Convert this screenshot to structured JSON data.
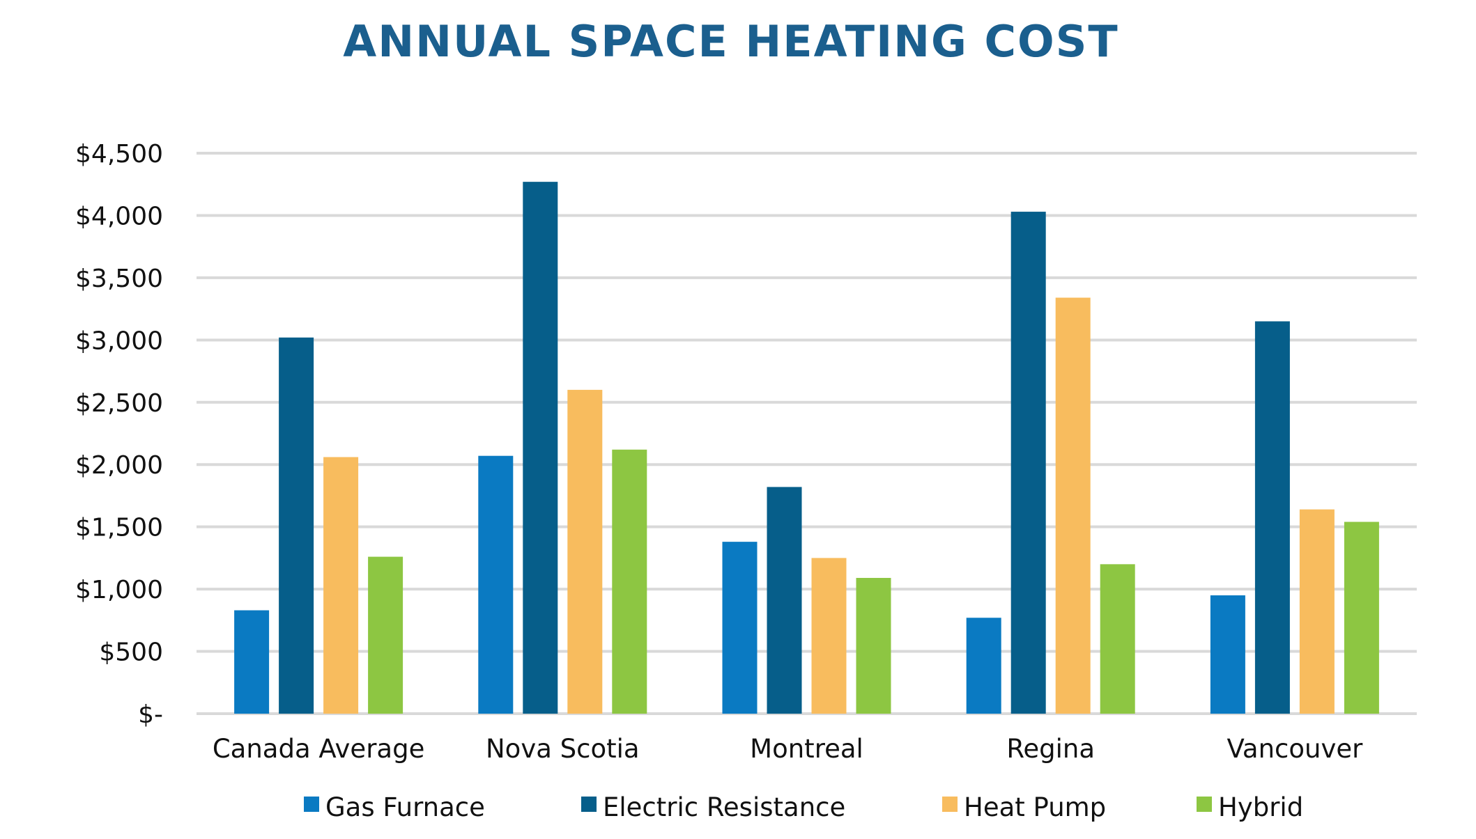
{
  "chart_data": {
    "type": "bar",
    "title": "ANNUAL SPACE HEATING COST",
    "xlabel": "",
    "ylabel": "",
    "ylim": [
      0,
      4500
    ],
    "yticks": [
      0,
      500,
      1000,
      1500,
      2000,
      2500,
      3000,
      3500,
      4000,
      4500
    ],
    "ytick_labels": [
      "$-",
      "$500",
      "$1,000",
      "$1,500",
      "$2,000",
      "$2,500",
      "$3,000",
      "$3,500",
      "$4,000",
      "$4,500"
    ],
    "grid": true,
    "legend_position": "bottom",
    "categories": [
      "Canada Average",
      "Nova Scotia",
      "Montreal",
      "Regina",
      "Vancouver"
    ],
    "series": [
      {
        "name": "Gas Furnace",
        "color": "#0A7AC2",
        "values": [
          830,
          2070,
          1380,
          770,
          950
        ]
      },
      {
        "name": "Electric Resistance",
        "color": "#065E8A",
        "values": [
          3020,
          4270,
          1820,
          4030,
          3150
        ]
      },
      {
        "name": "Heat Pump",
        "color": "#F8BC5E",
        "values": [
          2060,
          2600,
          1250,
          3340,
          1640
        ]
      },
      {
        "name": "Hybrid",
        "color": "#8DC642",
        "values": [
          1260,
          2120,
          1090,
          1200,
          1540
        ]
      }
    ]
  },
  "colors": {
    "title": "#1B5F8E",
    "grid": "#D9D9D9",
    "text": "#111111"
  }
}
